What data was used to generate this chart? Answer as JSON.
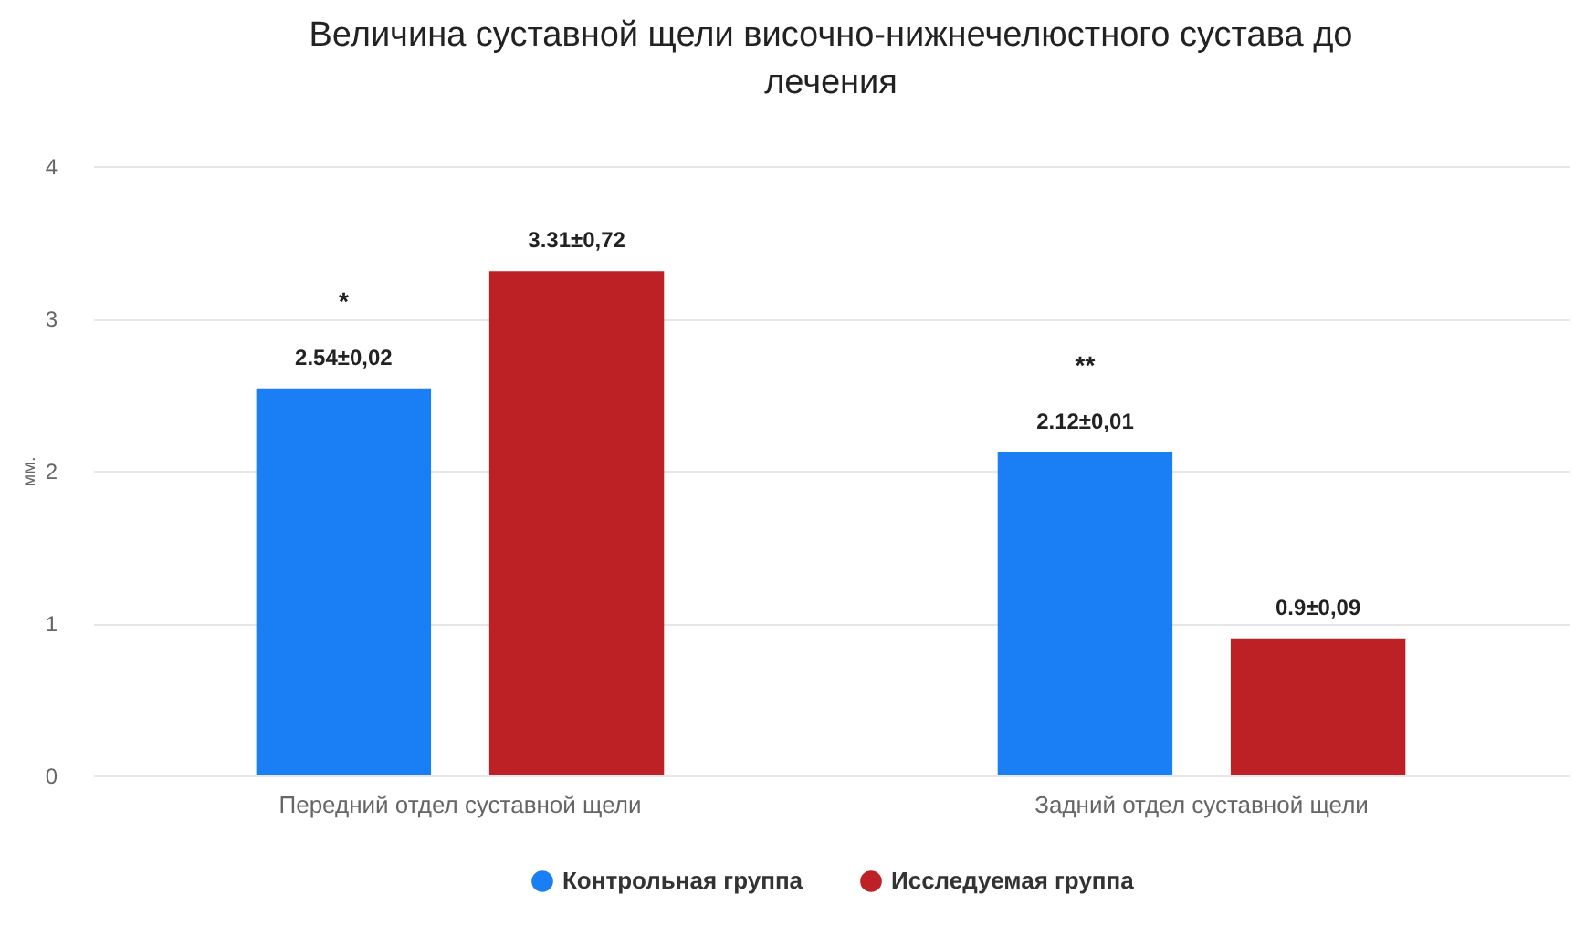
{
  "chart_data": {
    "type": "bar",
    "title": "Величина суставной щели височно-нижнечелюстного сустава до лечения",
    "ylabel": "мм.",
    "categories": [
      "Передний отдел суставной щели",
      "Задний отдел суставной щели"
    ],
    "series": [
      {
        "name": "Контрольная группа",
        "color": "#1a7ff5",
        "values": [
          2.54,
          2.12
        ],
        "value_labels": [
          "2.54±0,02",
          "2.12±0,01"
        ]
      },
      {
        "name": "Исследуемая группа",
        "color": "#bd2125",
        "values": [
          3.31,
          0.9
        ],
        "value_labels": [
          "3.31±0,72",
          "0.9±0,09"
        ]
      }
    ],
    "annotations": [
      "*",
      "**"
    ],
    "ylim": [
      0,
      4
    ],
    "yticks": [
      0,
      1,
      2,
      3,
      4
    ],
    "grid": "y",
    "legend": "bottom"
  }
}
